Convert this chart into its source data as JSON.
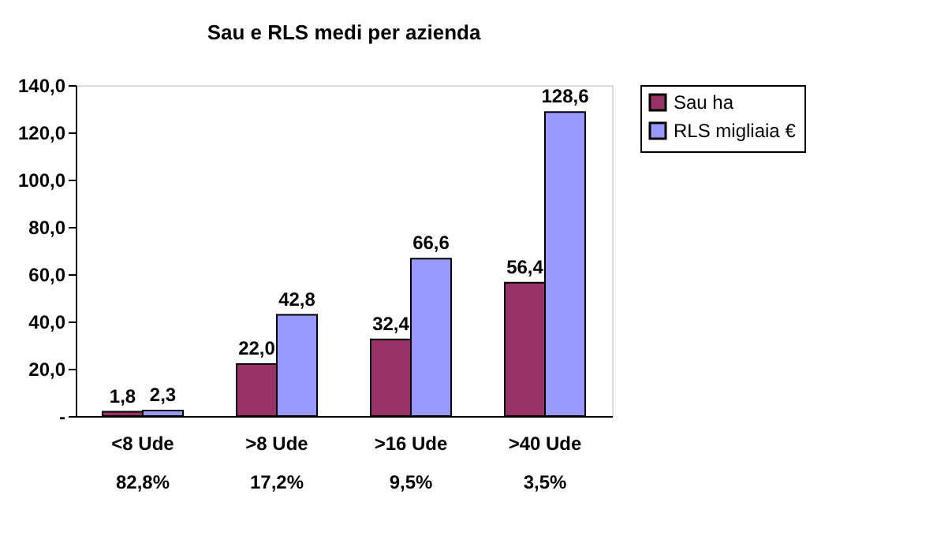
{
  "chart_data": {
    "type": "bar",
    "title": "Sau e RLS medi per azienda",
    "categories": [
      "<8 Ude",
      ">8 Ude",
      ">16 Ude",
      ">40  Ude"
    ],
    "series": [
      {
        "name": "Sau ha",
        "color": "#993366",
        "values": [
          1.8,
          22.0,
          32.4,
          56.4
        ],
        "value_labels": [
          "1,8",
          "22,0",
          "32,4",
          "56,4"
        ]
      },
      {
        "name": "RLS migliaia €",
        "color": "#9999ff",
        "values": [
          2.3,
          42.8,
          66.6,
          128.6
        ],
        "value_labels": [
          "2,3",
          "42,8",
          "66,6",
          "128,6"
        ]
      }
    ],
    "annotations": [
      "82,8%",
      "17,2%",
      "9,5%",
      "3,5%"
    ],
    "ylim": [
      0,
      140
    ],
    "yticks": [
      {
        "value": 0,
        "label": "-"
      },
      {
        "value": 20,
        "label": "20,0"
      },
      {
        "value": 40,
        "label": "40,0"
      },
      {
        "value": 60,
        "label": "60,0"
      },
      {
        "value": 80,
        "label": "80,0"
      },
      {
        "value": 100,
        "label": "100,0"
      },
      {
        "value": 120,
        "label": "120,0"
      },
      {
        "value": 140,
        "label": "140,0"
      }
    ],
    "grid": false,
    "legend": "right"
  }
}
